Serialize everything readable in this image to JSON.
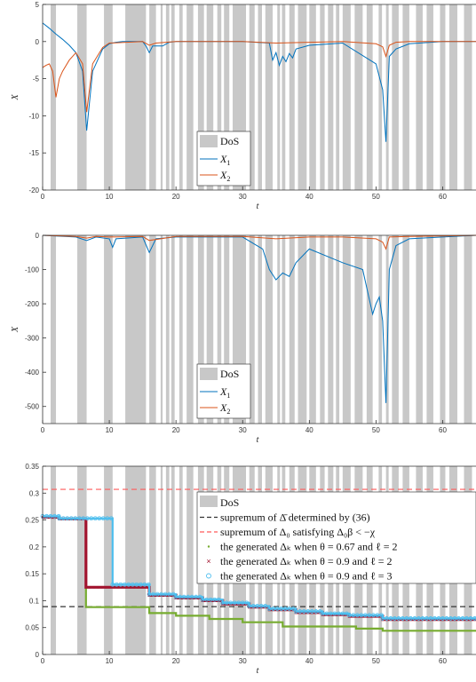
{
  "colors": {
    "dos": "#c8c8c8",
    "x1": "#0072bd",
    "x2": "#d95319",
    "supremum_bar": "#333333",
    "supremum_delta0": "#ff5a5a",
    "theta067": "#77ac30",
    "theta09_l2": "#a2142f",
    "theta09_l3": "#4dbeee"
  },
  "chart_data": [
    {
      "type": "line",
      "xlabel": "t",
      "ylabel": "X",
      "xlim": [
        0,
        65
      ],
      "ylim": [
        -20,
        5
      ],
      "xticks": [
        "0",
        "10",
        "20",
        "30",
        "40",
        "50",
        "60"
      ],
      "yticks": [
        "5",
        "0",
        "-5",
        "-10",
        "-15",
        "-20"
      ],
      "legend": [
        "DoS",
        "X_1",
        "X_2"
      ],
      "legend_position": "lower-center",
      "series": [
        {
          "name": "X_1",
          "x": [
            0,
            1,
            2,
            3,
            4,
            5,
            6,
            6.6,
            7.5,
            9,
            10,
            11,
            12,
            15,
            15.5,
            16,
            16.5,
            18,
            19,
            20,
            25,
            30,
            34,
            34.5,
            35,
            35.5,
            36,
            36.5,
            37,
            37.5,
            38,
            40,
            45,
            50,
            51,
            51.5,
            52,
            53,
            55,
            60,
            65
          ],
          "y": [
            2.5,
            1.8,
            1.0,
            0.3,
            -0.5,
            -1.5,
            -4.0,
            -12.0,
            -4.0,
            -1.0,
            -0.3,
            -0.1,
            0,
            0,
            -0.6,
            -1.5,
            -0.6,
            -0.6,
            -0.1,
            0,
            0,
            0,
            -0.2,
            -2.5,
            -1.5,
            -3.2,
            -2.0,
            -2.7,
            -1.6,
            -2.2,
            -1.0,
            -0.5,
            -0.2,
            -3.0,
            -6.5,
            -13.5,
            -2.0,
            -1.0,
            -0.3,
            0,
            0
          ]
        },
        {
          "name": "X_2",
          "x": [
            0,
            0.5,
            1,
            1.5,
            2,
            2.5,
            3,
            4,
            5,
            6,
            6.6,
            7.5,
            9,
            10,
            15,
            16,
            17,
            20,
            30,
            35,
            40,
            45,
            50,
            51,
            51.5,
            52,
            53,
            55,
            60,
            65
          ],
          "y": [
            -3.5,
            -3.2,
            -3.0,
            -4.0,
            -7.5,
            -5.0,
            -4.0,
            -2.5,
            -1.5,
            -3.0,
            -9.5,
            -3.0,
            -0.8,
            -0.2,
            0,
            -0.5,
            -0.2,
            0,
            0,
            -0.2,
            -0.1,
            0,
            -0.3,
            -0.7,
            -2.0,
            -0.5,
            -0.1,
            0,
            0,
            0
          ]
        }
      ]
    },
    {
      "type": "line",
      "xlabel": "t",
      "ylabel": "X",
      "xlim": [
        0,
        65
      ],
      "ylim": [
        -550,
        0
      ],
      "xticks": [
        "0",
        "10",
        "20",
        "30",
        "40",
        "50",
        "60"
      ],
      "yticks": [
        "0",
        "-100",
        "-200",
        "-300",
        "-400",
        "-500"
      ],
      "legend": [
        "DoS",
        "X_1",
        "X_2"
      ],
      "legend_position": "lower-center",
      "series": [
        {
          "name": "X_1",
          "x": [
            0,
            5,
            6.6,
            8,
            10,
            10.5,
            11,
            15,
            16,
            17,
            20,
            25,
            30,
            33,
            34,
            35,
            36,
            37,
            38,
            40,
            45,
            48,
            49.5,
            50,
            50.5,
            51,
            51.5,
            52,
            53,
            55,
            60,
            65
          ],
          "y": [
            0,
            -5,
            -15,
            -5,
            -10,
            -35,
            -10,
            -5,
            -50,
            -10,
            -5,
            -5,
            -5,
            -40,
            -100,
            -130,
            -110,
            -120,
            -80,
            -40,
            -80,
            -100,
            -230,
            -200,
            -180,
            -250,
            -490,
            -100,
            -30,
            -10,
            -5,
            0
          ]
        },
        {
          "name": "X_2",
          "x": [
            0,
            5,
            6.6,
            8,
            10,
            15,
            16,
            20,
            30,
            35,
            40,
            45,
            50,
            51,
            51.5,
            52,
            55,
            60,
            65
          ],
          "y": [
            0,
            -3,
            -8,
            -3,
            -5,
            -3,
            -15,
            -3,
            -3,
            -10,
            -5,
            -5,
            -10,
            -20,
            -40,
            -5,
            -3,
            -2,
            0
          ]
        }
      ]
    },
    {
      "type": "line",
      "xlabel": "t",
      "ylabel": "",
      "xlim": [
        0,
        65
      ],
      "ylim": [
        0,
        0.35
      ],
      "xticks": [
        "0",
        "10",
        "20",
        "30",
        "40",
        "50",
        "60"
      ],
      "yticks": [
        "0",
        "0.05",
        "0.1",
        "0.15",
        "0.2",
        "0.25",
        "0.3",
        "0.35"
      ],
      "legend": [
        "DoS",
        "supremum of Δ̄ determined by (36)",
        "supremum of Δ₀ satisfying Δ₀β < −χ",
        "the generated Δₖ when θ = 0.67 and ℓ = 2",
        "the generated Δₖ when θ = 0.9 and ℓ = 2",
        "the generated Δₖ when θ = 0.9 and ℓ = 3"
      ],
      "legend_position": "top-right",
      "hlines": [
        {
          "name": "supremum of Δ̄ determined by (36)",
          "y": 0.089
        },
        {
          "name": "supremum of Δ₀ satisfying Δ₀β < −χ",
          "y": 0.307
        }
      ],
      "series": [
        {
          "name": "the generated Δₖ when θ = 0.67 and ℓ = 2",
          "x": [
            0,
            2.5,
            2.5,
            6.5,
            6.5,
            16,
            16,
            20,
            20,
            25,
            25,
            30,
            30,
            36,
            36,
            47,
            47,
            51,
            51,
            65
          ],
          "y": [
            0.255,
            0.255,
            0.252,
            0.252,
            0.088,
            0.088,
            0.077,
            0.077,
            0.072,
            0.072,
            0.066,
            0.066,
            0.06,
            0.06,
            0.052,
            0.052,
            0.048,
            0.048,
            0.044,
            0.044
          ]
        },
        {
          "name": "the generated Δₖ when θ = 0.9 and ℓ = 2",
          "x": [
            0,
            2.5,
            2.5,
            6.5,
            6.5,
            16,
            16,
            20,
            20,
            24,
            24,
            27,
            27,
            31,
            31,
            34,
            34,
            38,
            38,
            42,
            42,
            46,
            46,
            51,
            51,
            65
          ],
          "y": [
            0.255,
            0.255,
            0.252,
            0.252,
            0.125,
            0.125,
            0.11,
            0.11,
            0.105,
            0.105,
            0.1,
            0.1,
            0.094,
            0.094,
            0.088,
            0.088,
            0.083,
            0.083,
            0.078,
            0.078,
            0.074,
            0.074,
            0.071,
            0.071,
            0.065,
            0.065
          ]
        },
        {
          "name": "the generated Δₖ when θ = 0.9 and ℓ = 3",
          "x": [
            0,
            2.5,
            2.5,
            10.5,
            10.5,
            16,
            16,
            20,
            20,
            24,
            24,
            27,
            27,
            31,
            31,
            34,
            34,
            38,
            38,
            42,
            42,
            46,
            46,
            51,
            51,
            65
          ],
          "y": [
            0.257,
            0.257,
            0.253,
            0.253,
            0.13,
            0.13,
            0.112,
            0.112,
            0.107,
            0.107,
            0.102,
            0.102,
            0.096,
            0.096,
            0.09,
            0.09,
            0.085,
            0.085,
            0.08,
            0.08,
            0.076,
            0.076,
            0.073,
            0.073,
            0.067,
            0.067
          ]
        }
      ]
    }
  ],
  "dos_intervals": [
    [
      1.2,
      2.0
    ],
    [
      5.2,
      6.6
    ],
    [
      9.2,
      10.5
    ],
    [
      12.4,
      15.5
    ],
    [
      16.0,
      17.0
    ],
    [
      17.7,
      18.0
    ],
    [
      18.5,
      19.0
    ],
    [
      19.3,
      19.8
    ],
    [
      20.5,
      21.0
    ],
    [
      21.6,
      22.6
    ],
    [
      23.3,
      24.2
    ],
    [
      24.6,
      25.6
    ],
    [
      26.2,
      26.8
    ],
    [
      27.2,
      28.0
    ],
    [
      28.5,
      30.5
    ],
    [
      31.0,
      31.8
    ],
    [
      32.3,
      32.9
    ],
    [
      33.4,
      34.5
    ],
    [
      35.2,
      35.6
    ],
    [
      35.9,
      36.4
    ],
    [
      37.0,
      37.8
    ],
    [
      38.3,
      39.6
    ],
    [
      40.0,
      41.0
    ],
    [
      41.6,
      42.3
    ],
    [
      42.8,
      43.6
    ],
    [
      44.0,
      44.5
    ],
    [
      45.0,
      46.2
    ],
    [
      46.8,
      48.0
    ],
    [
      48.6,
      49.5
    ],
    [
      50.4,
      50.9
    ],
    [
      51.5,
      51.9
    ],
    [
      52.4,
      53.4
    ],
    [
      54.0,
      55.0
    ],
    [
      56.0,
      57.0
    ],
    [
      57.6,
      58.6
    ],
    [
      59.6,
      60.4
    ],
    [
      61.0,
      62.2
    ],
    [
      63.2,
      64.4
    ]
  ]
}
